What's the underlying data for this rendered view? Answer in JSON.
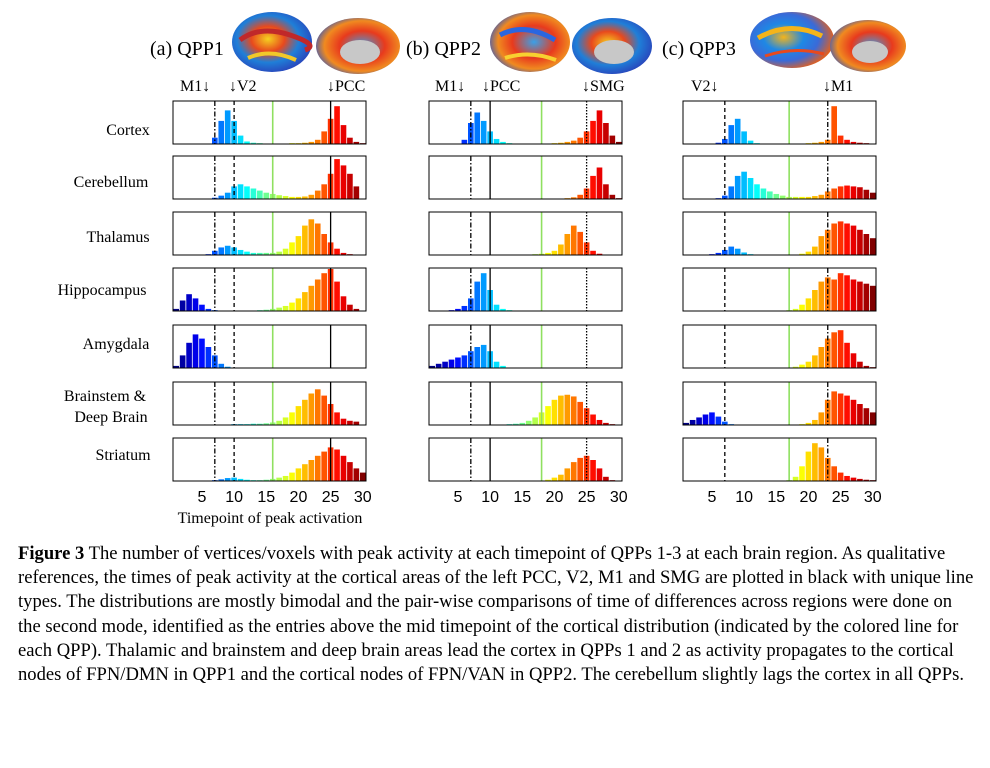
{
  "panels": [
    {
      "title": "(a) QPP1",
      "refs": [
        "M1↓",
        "↓V2",
        "↓PCC"
      ],
      "ref_times": [
        7,
        10,
        25
      ],
      "ref_styles": [
        "dashdot",
        "dashed",
        "solid"
      ],
      "mid_time": 16
    },
    {
      "title": "(b) QPP2",
      "refs": [
        "M1↓",
        "↓PCC",
        "↓SMG"
      ],
      "ref_times": [
        7,
        10,
        25
      ],
      "ref_styles": [
        "dashdot",
        "solid",
        "dotted"
      ],
      "mid_time": 18
    },
    {
      "title": "(c) QPP3",
      "refs": [
        "V2↓",
        "↓M1"
      ],
      "ref_times": [
        7,
        23
      ],
      "ref_styles": [
        "dashed",
        "dashdot"
      ],
      "mid_time": 17
    }
  ],
  "rows": [
    "Cortex",
    "Cerebellum",
    "Thalamus",
    "Hippocampus",
    "Amygdala",
    "Brainstem &",
    "Deep Brain",
    "Striatum"
  ],
  "x_ticks": [
    "5",
    "10",
    "15",
    "20",
    "25",
    "30"
  ],
  "x_axis_label": "Timepoint of peak activation",
  "caption": {
    "label": "Figure 3",
    "text": " The number of vertices/voxels with peak activity at each timepoint of QPPs 1-3 at each brain region. As qualitative references, the times of peak activity at the cortical areas of the left PCC, V2, M1 and SMG are plotted in black with unique line types. The distributions are mostly bimodal and the pair-wise comparisons of time of differences across regions were done on the second mode, identified as the entries above the mid timepoint of the cortical distribution (indicated by the colored line for each QPP). Thalamic and brainstem and deep brain areas lead the cortex in QPPs 1 and 2 as activity propagates to the cortical nodes of FPN/DMN in QPP1 and the cortical nodes of FPN/VAN in QPP2. The cerebellum slightly lags the cortex in all QPPs."
  },
  "colors": {
    "mid_line": "#8fe060",
    "axis": "#000000"
  },
  "chart_data": {
    "type": "bar",
    "x": [
      1,
      2,
      3,
      4,
      5,
      6,
      7,
      8,
      9,
      10,
      11,
      12,
      13,
      14,
      15,
      16,
      17,
      18,
      19,
      20,
      21,
      22,
      23,
      24,
      25,
      26,
      27,
      28,
      29,
      30
    ],
    "xlim": [
      0.5,
      30.5
    ],
    "ylim": [
      0,
      1
    ],
    "y_units": "relative count (no axis printed)",
    "series": [
      [
        [
          0,
          0,
          0,
          0,
          0,
          0,
          0.15,
          0.55,
          0.8,
          0.55,
          0.2,
          0.06,
          0.03,
          0.02,
          0.01,
          0.01,
          0.01,
          0.01,
          0.02,
          0.02,
          0.03,
          0.05,
          0.1,
          0.3,
          0.6,
          0.9,
          0.45,
          0.15,
          0.05,
          0.02
        ],
        [
          0,
          0,
          0,
          0,
          0,
          0.01,
          0.03,
          0.08,
          0.15,
          0.3,
          0.35,
          0.3,
          0.25,
          0.2,
          0.15,
          0.12,
          0.09,
          0.07,
          0.05,
          0.05,
          0.06,
          0.1,
          0.2,
          0.35,
          0.6,
          0.95,
          0.8,
          0.6,
          0.3,
          0
        ],
        [
          0,
          0,
          0,
          0,
          0,
          0.02,
          0.1,
          0.18,
          0.22,
          0.18,
          0.12,
          0.08,
          0.05,
          0.05,
          0.05,
          0.05,
          0.08,
          0.15,
          0.3,
          0.45,
          0.7,
          0.85,
          0.75,
          0.5,
          0.3,
          0.15,
          0.05,
          0.02,
          0,
          0
        ],
        [
          0.05,
          0.25,
          0.4,
          0.3,
          0.15,
          0.05,
          0.02,
          0.01,
          0.01,
          0.01,
          0.01,
          0.01,
          0.01,
          0.02,
          0.03,
          0.05,
          0.08,
          0.12,
          0.2,
          0.3,
          0.45,
          0.6,
          0.75,
          0.9,
          1.0,
          0.7,
          0.35,
          0.15,
          0.05,
          0
        ],
        [
          0.05,
          0.3,
          0.6,
          0.8,
          0.7,
          0.5,
          0.3,
          0.1,
          0.03,
          0.01,
          0,
          0,
          0,
          0,
          0,
          0,
          0,
          0,
          0,
          0,
          0,
          0,
          0,
          0,
          0,
          0,
          0,
          0,
          0,
          0
        ],
        [
          0,
          0,
          0,
          0,
          0,
          0,
          0,
          0,
          0,
          0.02,
          0.02,
          0.02,
          0.03,
          0.03,
          0.04,
          0.06,
          0.1,
          0.18,
          0.3,
          0.45,
          0.6,
          0.75,
          0.85,
          0.7,
          0.5,
          0.3,
          0.15,
          0.1,
          0.08,
          0
        ],
        [
          0,
          0,
          0,
          0,
          0,
          0,
          0.02,
          0.04,
          0.07,
          0.08,
          0.05,
          0.03,
          0.02,
          0.02,
          0.03,
          0.05,
          0.08,
          0.12,
          0.2,
          0.3,
          0.4,
          0.5,
          0.6,
          0.7,
          0.8,
          0.75,
          0.6,
          0.45,
          0.3,
          0.2
        ]
      ],
      [
        [
          0,
          0,
          0,
          0,
          0,
          0.1,
          0.5,
          0.75,
          0.55,
          0.3,
          0.12,
          0.05,
          0.02,
          0.01,
          0.01,
          0.01,
          0.01,
          0.01,
          0.01,
          0.02,
          0.03,
          0.05,
          0.08,
          0.15,
          0.3,
          0.55,
          0.8,
          0.5,
          0.2,
          0.05
        ],
        [
          0,
          0,
          0,
          0,
          0,
          0,
          0,
          0,
          0,
          0,
          0,
          0,
          0,
          0,
          0,
          0,
          0,
          0,
          0,
          0,
          0.01,
          0.02,
          0.04,
          0.1,
          0.25,
          0.55,
          0.75,
          0.35,
          0.1,
          0.02
        ],
        [
          0,
          0,
          0,
          0,
          0,
          0,
          0,
          0,
          0,
          0,
          0,
          0,
          0,
          0,
          0,
          0.01,
          0.02,
          0.03,
          0.05,
          0.1,
          0.25,
          0.5,
          0.7,
          0.55,
          0.3,
          0.1,
          0.03,
          0,
          0,
          0
        ],
        [
          0,
          0,
          0,
          0.02,
          0.05,
          0.12,
          0.3,
          0.7,
          0.9,
          0.5,
          0.15,
          0.05,
          0.02,
          0.01,
          0,
          0,
          0,
          0,
          0,
          0,
          0,
          0,
          0,
          0,
          0,
          0,
          0,
          0,
          0,
          0
        ],
        [
          0.05,
          0.1,
          0.15,
          0.2,
          0.25,
          0.3,
          0.4,
          0.5,
          0.55,
          0.4,
          0.15,
          0.05,
          0.01,
          0,
          0,
          0,
          0,
          0,
          0,
          0,
          0,
          0,
          0,
          0,
          0,
          0,
          0,
          0,
          0,
          0
        ],
        [
          0,
          0,
          0,
          0,
          0,
          0,
          0,
          0,
          0,
          0,
          0.01,
          0.01,
          0.02,
          0.03,
          0.05,
          0.1,
          0.18,
          0.3,
          0.45,
          0.6,
          0.7,
          0.72,
          0.68,
          0.55,
          0.4,
          0.25,
          0.12,
          0.05,
          0.02,
          0
        ],
        [
          0,
          0,
          0,
          0,
          0,
          0,
          0,
          0,
          0,
          0,
          0,
          0,
          0,
          0,
          0,
          0,
          0,
          0.01,
          0.03,
          0.08,
          0.15,
          0.3,
          0.45,
          0.55,
          0.6,
          0.5,
          0.3,
          0.1,
          0.02,
          0
        ]
      ],
      [
        [
          0,
          0,
          0,
          0,
          0,
          0.03,
          0.12,
          0.45,
          0.6,
          0.3,
          0.08,
          0.02,
          0.01,
          0.01,
          0.01,
          0.01,
          0.01,
          0.01,
          0.01,
          0.02,
          0.03,
          0.05,
          0.1,
          0.9,
          0.2,
          0.1,
          0.05,
          0.03,
          0.02,
          0.01
        ],
        [
          0,
          0,
          0,
          0,
          0,
          0.02,
          0.08,
          0.3,
          0.55,
          0.65,
          0.5,
          0.35,
          0.25,
          0.18,
          0.12,
          0.08,
          0.05,
          0.05,
          0.05,
          0.05,
          0.07,
          0.1,
          0.18,
          0.25,
          0.3,
          0.32,
          0.3,
          0.28,
          0.22,
          0.15
        ],
        [
          0,
          0,
          0,
          0,
          0.02,
          0.05,
          0.12,
          0.2,
          0.15,
          0.06,
          0.02,
          0.01,
          0,
          0,
          0,
          0,
          0,
          0.01,
          0.03,
          0.08,
          0.2,
          0.45,
          0.6,
          0.75,
          0.8,
          0.75,
          0.7,
          0.6,
          0.5,
          0.4
        ],
        [
          0,
          0,
          0,
          0,
          0,
          0,
          0,
          0,
          0,
          0,
          0,
          0,
          0,
          0,
          0,
          0,
          0.02,
          0.05,
          0.15,
          0.3,
          0.5,
          0.7,
          0.8,
          0.75,
          0.9,
          0.85,
          0.75,
          0.7,
          0.65,
          0.6
        ],
        [
          0,
          0,
          0,
          0,
          0,
          0,
          0,
          0,
          0,
          0,
          0,
          0,
          0,
          0,
          0,
          0,
          0.01,
          0.03,
          0.08,
          0.15,
          0.3,
          0.5,
          0.7,
          0.85,
          0.9,
          0.6,
          0.35,
          0.15,
          0.05,
          0.02
        ],
        [
          0.05,
          0.12,
          0.18,
          0.25,
          0.3,
          0.2,
          0.08,
          0.02,
          0,
          0,
          0,
          0,
          0,
          0,
          0,
          0,
          0,
          0,
          0.02,
          0.05,
          0.12,
          0.3,
          0.6,
          0.8,
          0.75,
          0.7,
          0.6,
          0.5,
          0.4,
          0.3
        ],
        [
          0,
          0,
          0,
          0,
          0,
          0,
          0,
          0,
          0,
          0,
          0,
          0,
          0,
          0,
          0,
          0,
          0.02,
          0.1,
          0.35,
          0.7,
          0.9,
          0.8,
          0.55,
          0.35,
          0.2,
          0.12,
          0.08,
          0.05,
          0.03,
          0.02
        ]
      ]
    ]
  }
}
